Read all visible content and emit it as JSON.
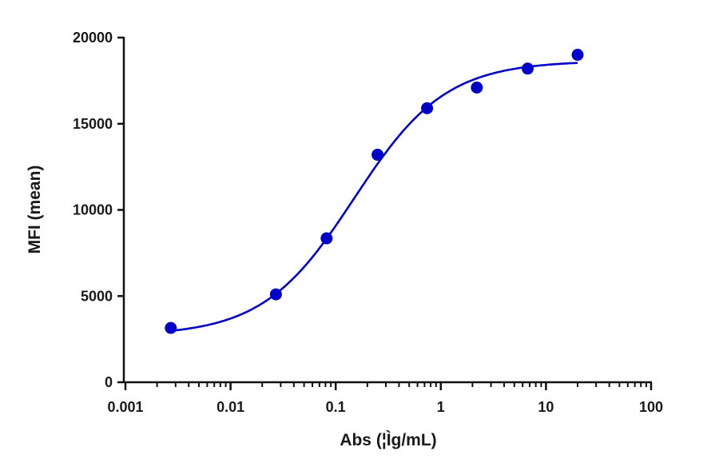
{
  "chart_data": {
    "type": "scatter",
    "title": "",
    "xlabel": "Abs (¦Ìg/mL)",
    "ylabel": "MFI (mean)",
    "xscale": "log",
    "xlim": [
      0.001,
      100
    ],
    "ylim": [
      0,
      20000
    ],
    "x_ticks": [
      "0.001",
      "0.01",
      "0.1",
      "1",
      "10",
      "100"
    ],
    "y_ticks": [
      "0",
      "5000",
      "10000",
      "15000",
      "20000"
    ],
    "grid": false,
    "legend": null,
    "series": [
      {
        "name": "MFI",
        "color": "#0000c8",
        "marker": "circle",
        "points": [
          {
            "x": 0.0027,
            "y": 3150
          },
          {
            "x": 0.027,
            "y": 5100
          },
          {
            "x": 0.082,
            "y": 8350
          },
          {
            "x": 0.25,
            "y": 13200
          },
          {
            "x": 0.74,
            "y": 15900
          },
          {
            "x": 2.2,
            "y": 17100
          },
          {
            "x": 6.7,
            "y": 18200
          },
          {
            "x": 20,
            "y": 19000
          }
        ],
        "fit": {
          "model": "4PL sigmoidal",
          "bottom": 2700,
          "top": 18650,
          "ec50": 0.15,
          "hill": 1.0,
          "x_range": [
            0.0027,
            20
          ]
        }
      }
    ]
  }
}
